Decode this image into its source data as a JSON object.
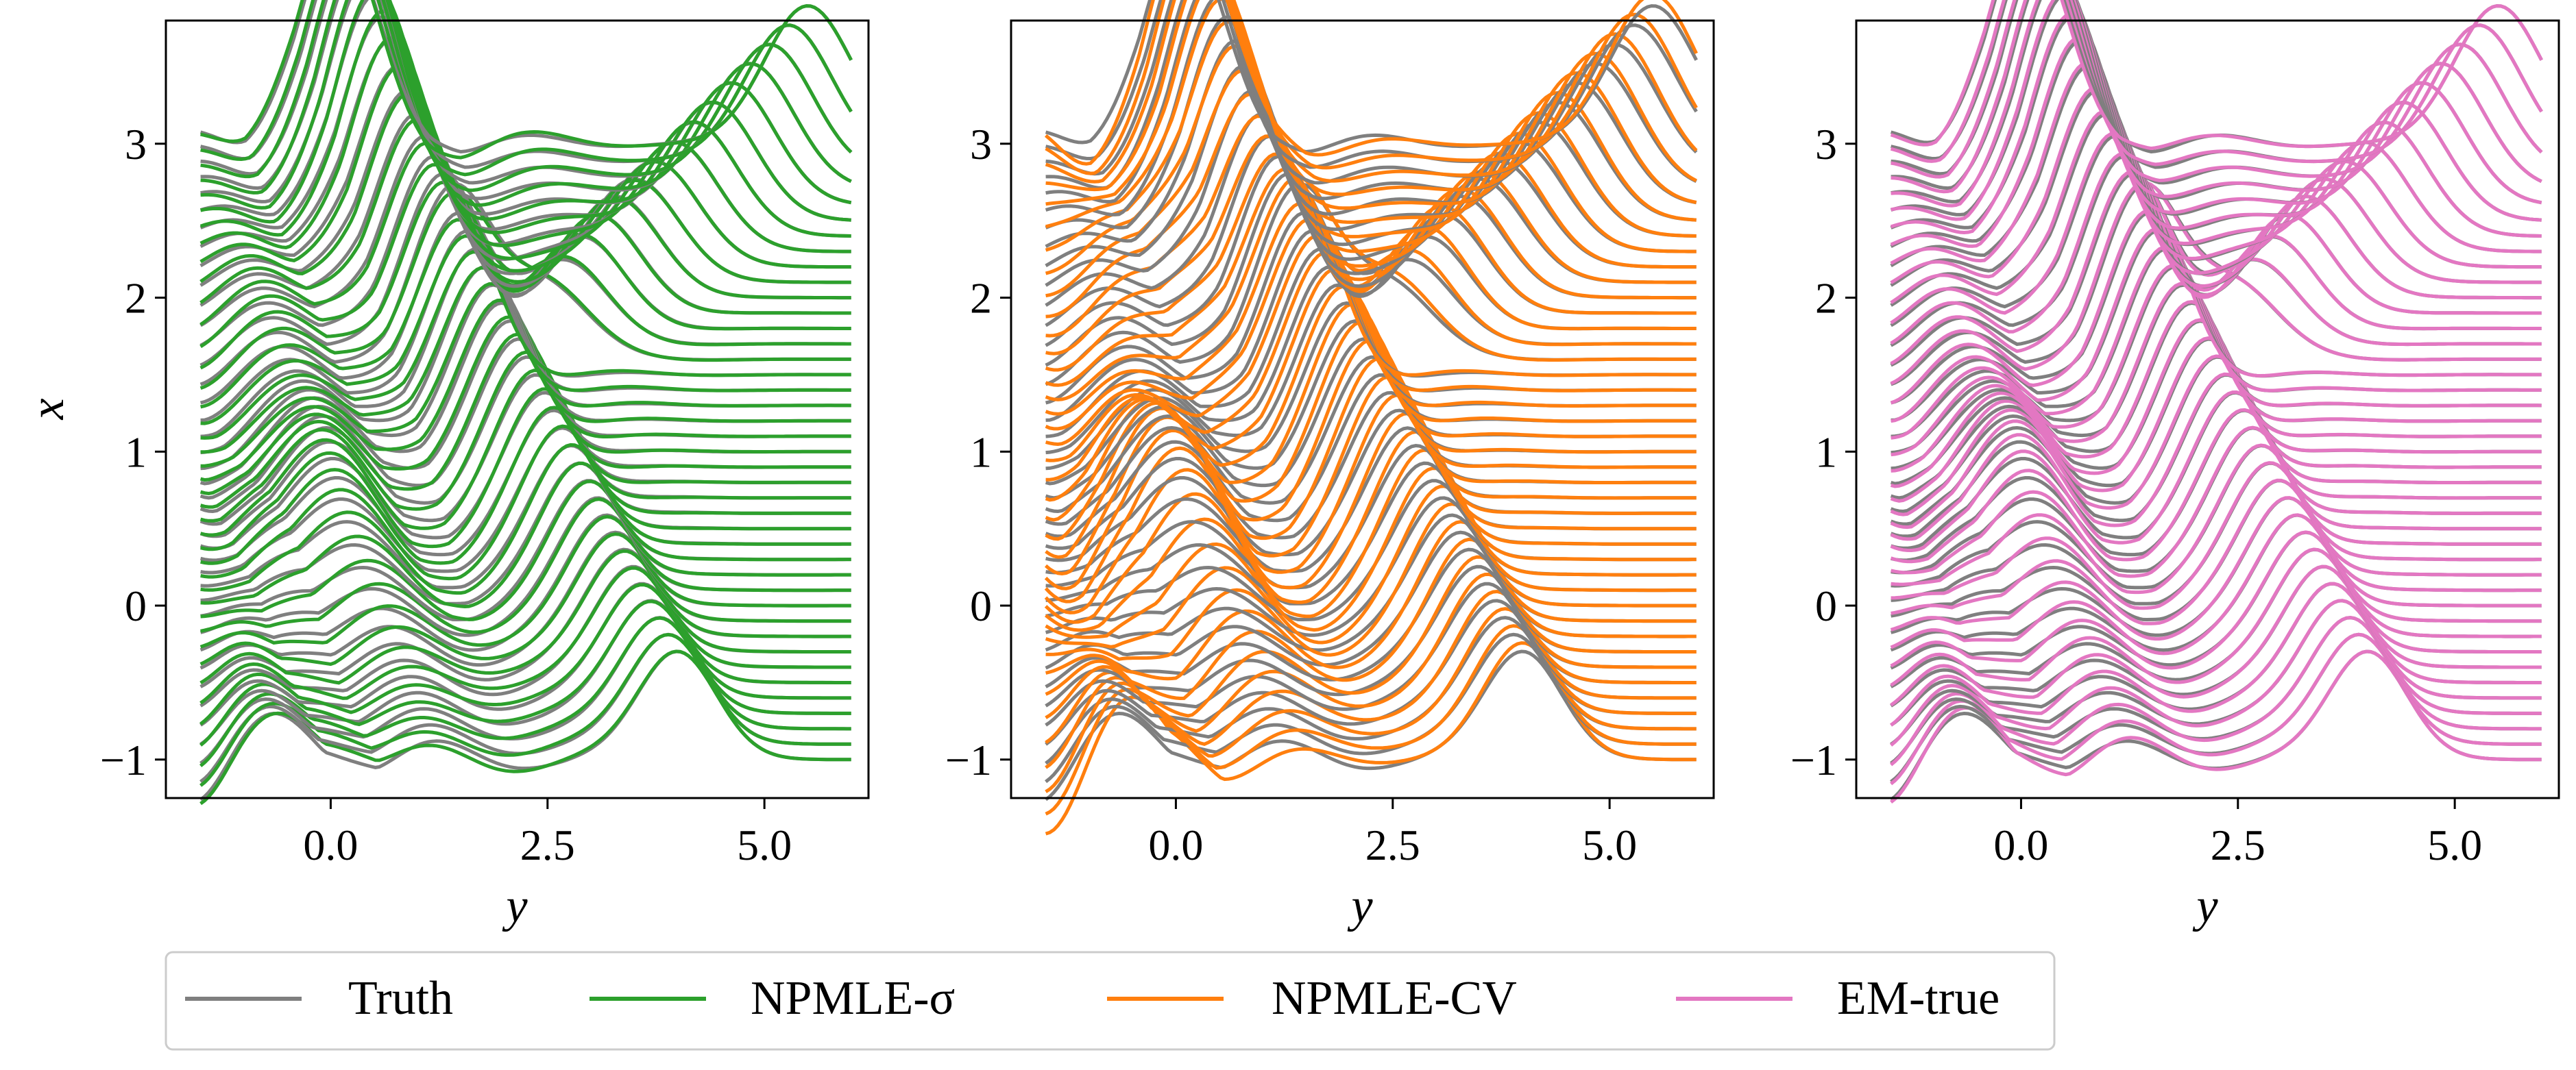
{
  "chart_data": [
    {
      "type": "line",
      "panel": "left",
      "xlabel": "y",
      "ylabel": "x",
      "xlim": [
        -1.9,
        6.2
      ],
      "ylim": [
        -1.25,
        3.8
      ],
      "xticks": [
        0.0,
        2.5,
        5.0
      ],
      "xtick_labels": [
        "0.0",
        "2.5",
        "5.0"
      ],
      "yticks": [
        -1,
        0,
        1,
        2,
        3
      ],
      "ytick_labels": [
        "−1",
        "0",
        "1",
        "2",
        "3"
      ],
      "x_range": [
        -1.5,
        6.0
      ],
      "baselines": {
        "from": -1.0,
        "to": 3.0,
        "step": 0.1
      },
      "series": [
        {
          "name": "Truth",
          "color": "#7f7f7f"
        },
        {
          "name": "NPMLE-σ",
          "color": "#2ca02c"
        }
      ]
    },
    {
      "type": "line",
      "panel": "middle",
      "xlabel": "y",
      "ylabel": "",
      "xlim": [
        -1.9,
        6.2
      ],
      "ylim": [
        -1.25,
        3.8
      ],
      "xticks": [
        0.0,
        2.5,
        5.0
      ],
      "xtick_labels": [
        "0.0",
        "2.5",
        "5.0"
      ],
      "yticks": [
        -1,
        0,
        1,
        2,
        3
      ],
      "ytick_labels": [
        "−1",
        "0",
        "1",
        "2",
        "3"
      ],
      "x_range": [
        -1.5,
        6.0
      ],
      "baselines": {
        "from": -1.0,
        "to": 3.0,
        "step": 0.1
      },
      "series": [
        {
          "name": "Truth",
          "color": "#7f7f7f"
        },
        {
          "name": "NPMLE-CV",
          "color": "#ff7f0e"
        }
      ]
    },
    {
      "type": "line",
      "panel": "right",
      "xlabel": "y",
      "ylabel": "",
      "xlim": [
        -1.9,
        6.2
      ],
      "ylim": [
        -1.25,
        3.8
      ],
      "xticks": [
        0.0,
        2.5,
        5.0
      ],
      "xtick_labels": [
        "0.0",
        "2.5",
        "5.0"
      ],
      "yticks": [
        -1,
        0,
        1,
        2,
        3
      ],
      "ytick_labels": [
        "−1",
        "0",
        "1",
        "2",
        "3"
      ],
      "x_range": [
        -1.5,
        6.0
      ],
      "baselines": {
        "from": -1.0,
        "to": 3.0,
        "step": 0.1
      },
      "series": [
        {
          "name": "Truth",
          "color": "#7f7f7f"
        },
        {
          "name": "EM-true",
          "color": "#e377c2"
        }
      ]
    }
  ],
  "legend": {
    "placement": "bottom-left",
    "items": [
      {
        "label": "Truth",
        "color": "#7f7f7f"
      },
      {
        "label": "NPMLE-σ",
        "color": "#2ca02c"
      },
      {
        "label": "NPMLE-CV",
        "color": "#ff7f0e"
      },
      {
        "label": "EM-true",
        "color": "#e377c2"
      }
    ]
  }
}
